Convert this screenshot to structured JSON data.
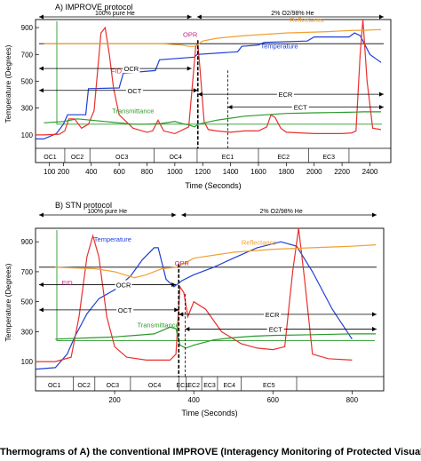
{
  "caption": "Thermograms of A) the conventional IMPROVE (Interagency Monitoring of Protected Visual Environments) and B) STN",
  "colors": {
    "temperature": "#1f3fd6",
    "fid": "#e8302e",
    "reflectance": "#f0a030",
    "transmittance": "#2a9a2a",
    "opr": "#000000",
    "frame": "#000000",
    "baseline": "#2a9a2a"
  },
  "chart_data": [
    {
      "type": "line",
      "title": "A) IMPROVE protocol",
      "xlabel": "Time (Seconds)",
      "ylabel": "Temperature (Degrees)",
      "xlim": [
        0,
        2550
      ],
      "ylim": [
        0,
        960
      ],
      "xticks": [
        100,
        200,
        400,
        600,
        800,
        1000,
        1200,
        1400,
        1600,
        1800,
        2000,
        2200,
        2400
      ],
      "xtick_labels": [
        "100",
        "200",
        "400",
        "600",
        "800",
        "1000",
        "1200",
        "1400",
        "1600",
        "1800",
        "2000",
        "2200",
        "2400"
      ],
      "yticks": [
        100,
        300,
        500,
        700,
        900
      ],
      "carrier_gas": {
        "inert_label": "100% pure He",
        "oxidizing_label": "2% O2/98% He",
        "switch_x": 1140
      },
      "fractions": {
        "labels": [
          "OC1",
          "OC2",
          "OC3",
          "OC4",
          "EC1",
          "EC2",
          "EC3"
        ],
        "boundaries": [
          60,
          210,
          390,
          850,
          1160,
          1600,
          1960,
          2250,
          2480
        ],
        "row_cells": [
          [
            0,
            210
          ],
          [
            210,
            390
          ],
          [
            390,
            850
          ],
          [
            850,
            1160
          ],
          [
            1160,
            1600
          ],
          [
            1600,
            1960
          ],
          [
            1960,
            2250
          ]
        ]
      },
      "opr_x": 1165,
      "opr_label": "OPR",
      "ocr_label": "OCR",
      "oct_label": "OCT",
      "ecr_label": "ECR",
      "ect_label": "ECT",
      "ocr_end_x": 1120,
      "oct_end_x": 1165,
      "ecr_start_x": 1165,
      "ect_start_x": 1380,
      "series": [
        {
          "name": "Temperature",
          "x": [
            0,
            60,
            150,
            200,
            230,
            360,
            380,
            600,
            630,
            860,
            890,
            1140,
            1160,
            1450,
            1480,
            1600,
            1640,
            1950,
            2000,
            2250,
            2290,
            2330,
            2400,
            2480
          ],
          "y": [
            70,
            70,
            110,
            180,
            250,
            250,
            445,
            450,
            560,
            580,
            660,
            680,
            700,
            720,
            760,
            770,
            790,
            800,
            830,
            830,
            860,
            840,
            700,
            640
          ]
        },
        {
          "name": "FID",
          "x": [
            0,
            60,
            170,
            210,
            240,
            280,
            330,
            380,
            420,
            470,
            500,
            530,
            560,
            600,
            700,
            800,
            840,
            880,
            920,
            1000,
            1100,
            1150,
            1165,
            1180,
            1210,
            1240,
            1300,
            1400,
            1500,
            1600,
            1660,
            1690,
            1720,
            1760,
            1800,
            2000,
            2200,
            2270,
            2300,
            2330,
            2350,
            2380,
            2420,
            2480
          ],
          "y": [
            100,
            100,
            105,
            130,
            220,
            220,
            150,
            180,
            280,
            860,
            900,
            700,
            450,
            250,
            150,
            120,
            130,
            210,
            130,
            110,
            160,
            760,
            780,
            600,
            200,
            140,
            130,
            120,
            130,
            130,
            160,
            250,
            230,
            150,
            120,
            110,
            110,
            115,
            130,
            700,
            1000,
            500,
            150,
            140
          ]
        },
        {
          "name": "Reflectance",
          "x": [
            60,
            900,
            1050,
            1100,
            1140,
            1160,
            1200,
            1300,
            1500,
            1800,
            2100,
            2200,
            2300,
            2350,
            2480
          ],
          "y": [
            780,
            780,
            770,
            760,
            760,
            770,
            800,
            820,
            840,
            860,
            870,
            875,
            880,
            880,
            885
          ]
        },
        {
          "name": "Transmittance",
          "x": [
            60,
            200,
            300,
            400,
            500,
            600,
            700,
            800,
            900,
            1000,
            1050,
            1100,
            1140,
            1170,
            1300,
            1500,
            1800,
            2000,
            2200,
            2300,
            2350,
            2480
          ],
          "y": [
            190,
            200,
            220,
            210,
            200,
            190,
            180,
            180,
            185,
            200,
            185,
            175,
            160,
            180,
            210,
            240,
            260,
            265,
            268,
            270,
            272,
            272
          ]
        }
      ],
      "series_labels": [
        "Temperature",
        "FID",
        "Reflectance",
        "Transmittance",
        "OPR"
      ]
    },
    {
      "type": "line",
      "title": "B) STN protocol",
      "xlabel": "Time (Seconds)",
      "ylabel": "Temperature (Degrees)",
      "xlim": [
        0,
        880
      ],
      "ylim": [
        0,
        990
      ],
      "xticks": [
        200,
        400,
        600,
        800
      ],
      "xtick_labels": [
        "200",
        "400",
        "600",
        "800"
      ],
      "yticks": [
        100,
        300,
        500,
        700,
        900
      ],
      "carrier_gas": {
        "inert_label": "100% pure He",
        "oxidizing_label": "2% O2/98% He",
        "switch_x": 362
      },
      "fractions": {
        "labels": [
          "OC1",
          "OC2",
          "OC3",
          "OC4",
          "EC1",
          "EC2",
          "EC3",
          "EC4",
          "EC5"
        ],
        "row_cells": [
          [
            0,
            95
          ],
          [
            95,
            150
          ],
          [
            150,
            240
          ],
          [
            240,
            362
          ],
          [
            362,
            380
          ],
          [
            380,
            420
          ],
          [
            420,
            460
          ],
          [
            460,
            520
          ],
          [
            520,
            660
          ]
        ]
      },
      "opr_x": 362,
      "opr_label": "OPR",
      "ocr_label": "OCR",
      "oct_label": "OCT",
      "ecr_label": "ECR",
      "ect_label": "ECT",
      "ocr_end_x": 355,
      "oct_end_x": 362,
      "ecr_start_x": 362,
      "ect_start_x": 378,
      "series": [
        {
          "name": "Temperature",
          "x": [
            0,
            50,
            80,
            100,
            130,
            160,
            200,
            240,
            270,
            300,
            310,
            330,
            350,
            370,
            400,
            450,
            500,
            560,
            620,
            660,
            700,
            750,
            800
          ],
          "y": [
            50,
            60,
            150,
            270,
            420,
            520,
            580,
            670,
            780,
            860,
            860,
            650,
            600,
            640,
            680,
            730,
            790,
            860,
            900,
            870,
            700,
            450,
            250
          ]
        },
        {
          "name": "FID",
          "x": [
            0,
            50,
            90,
            110,
            130,
            145,
            160,
            180,
            200,
            230,
            280,
            340,
            355,
            365,
            375,
            385,
            400,
            430,
            470,
            520,
            560,
            600,
            630,
            650,
            665,
            680,
            700,
            740,
            800
          ],
          "y": [
            100,
            100,
            130,
            400,
            800,
            940,
            800,
            400,
            200,
            130,
            110,
            110,
            150,
            600,
            560,
            400,
            500,
            450,
            300,
            220,
            190,
            180,
            200,
            700,
            1000,
            650,
            150,
            120,
            110
          ]
        },
        {
          "name": "Reflectance",
          "x": [
            50,
            150,
            200,
            250,
            280,
            320,
            355,
            365,
            400,
            500,
            600,
            700,
            800,
            860
          ],
          "y": [
            730,
            720,
            700,
            660,
            680,
            720,
            730,
            740,
            790,
            830,
            850,
            860,
            870,
            880
          ]
        },
        {
          "name": "Transmittance",
          "x": [
            50,
            150,
            200,
            250,
            300,
            340,
            355,
            365,
            380,
            400,
            450,
            500,
            550,
            600,
            700,
            800,
            860
          ],
          "y": [
            250,
            260,
            265,
            275,
            285,
            330,
            320,
            210,
            190,
            210,
            245,
            260,
            270,
            275,
            280,
            285,
            285
          ]
        }
      ],
      "series_labels": [
        "Temperature",
        "FID",
        "Reflectance",
        "Transmittance",
        "OPR"
      ]
    }
  ]
}
